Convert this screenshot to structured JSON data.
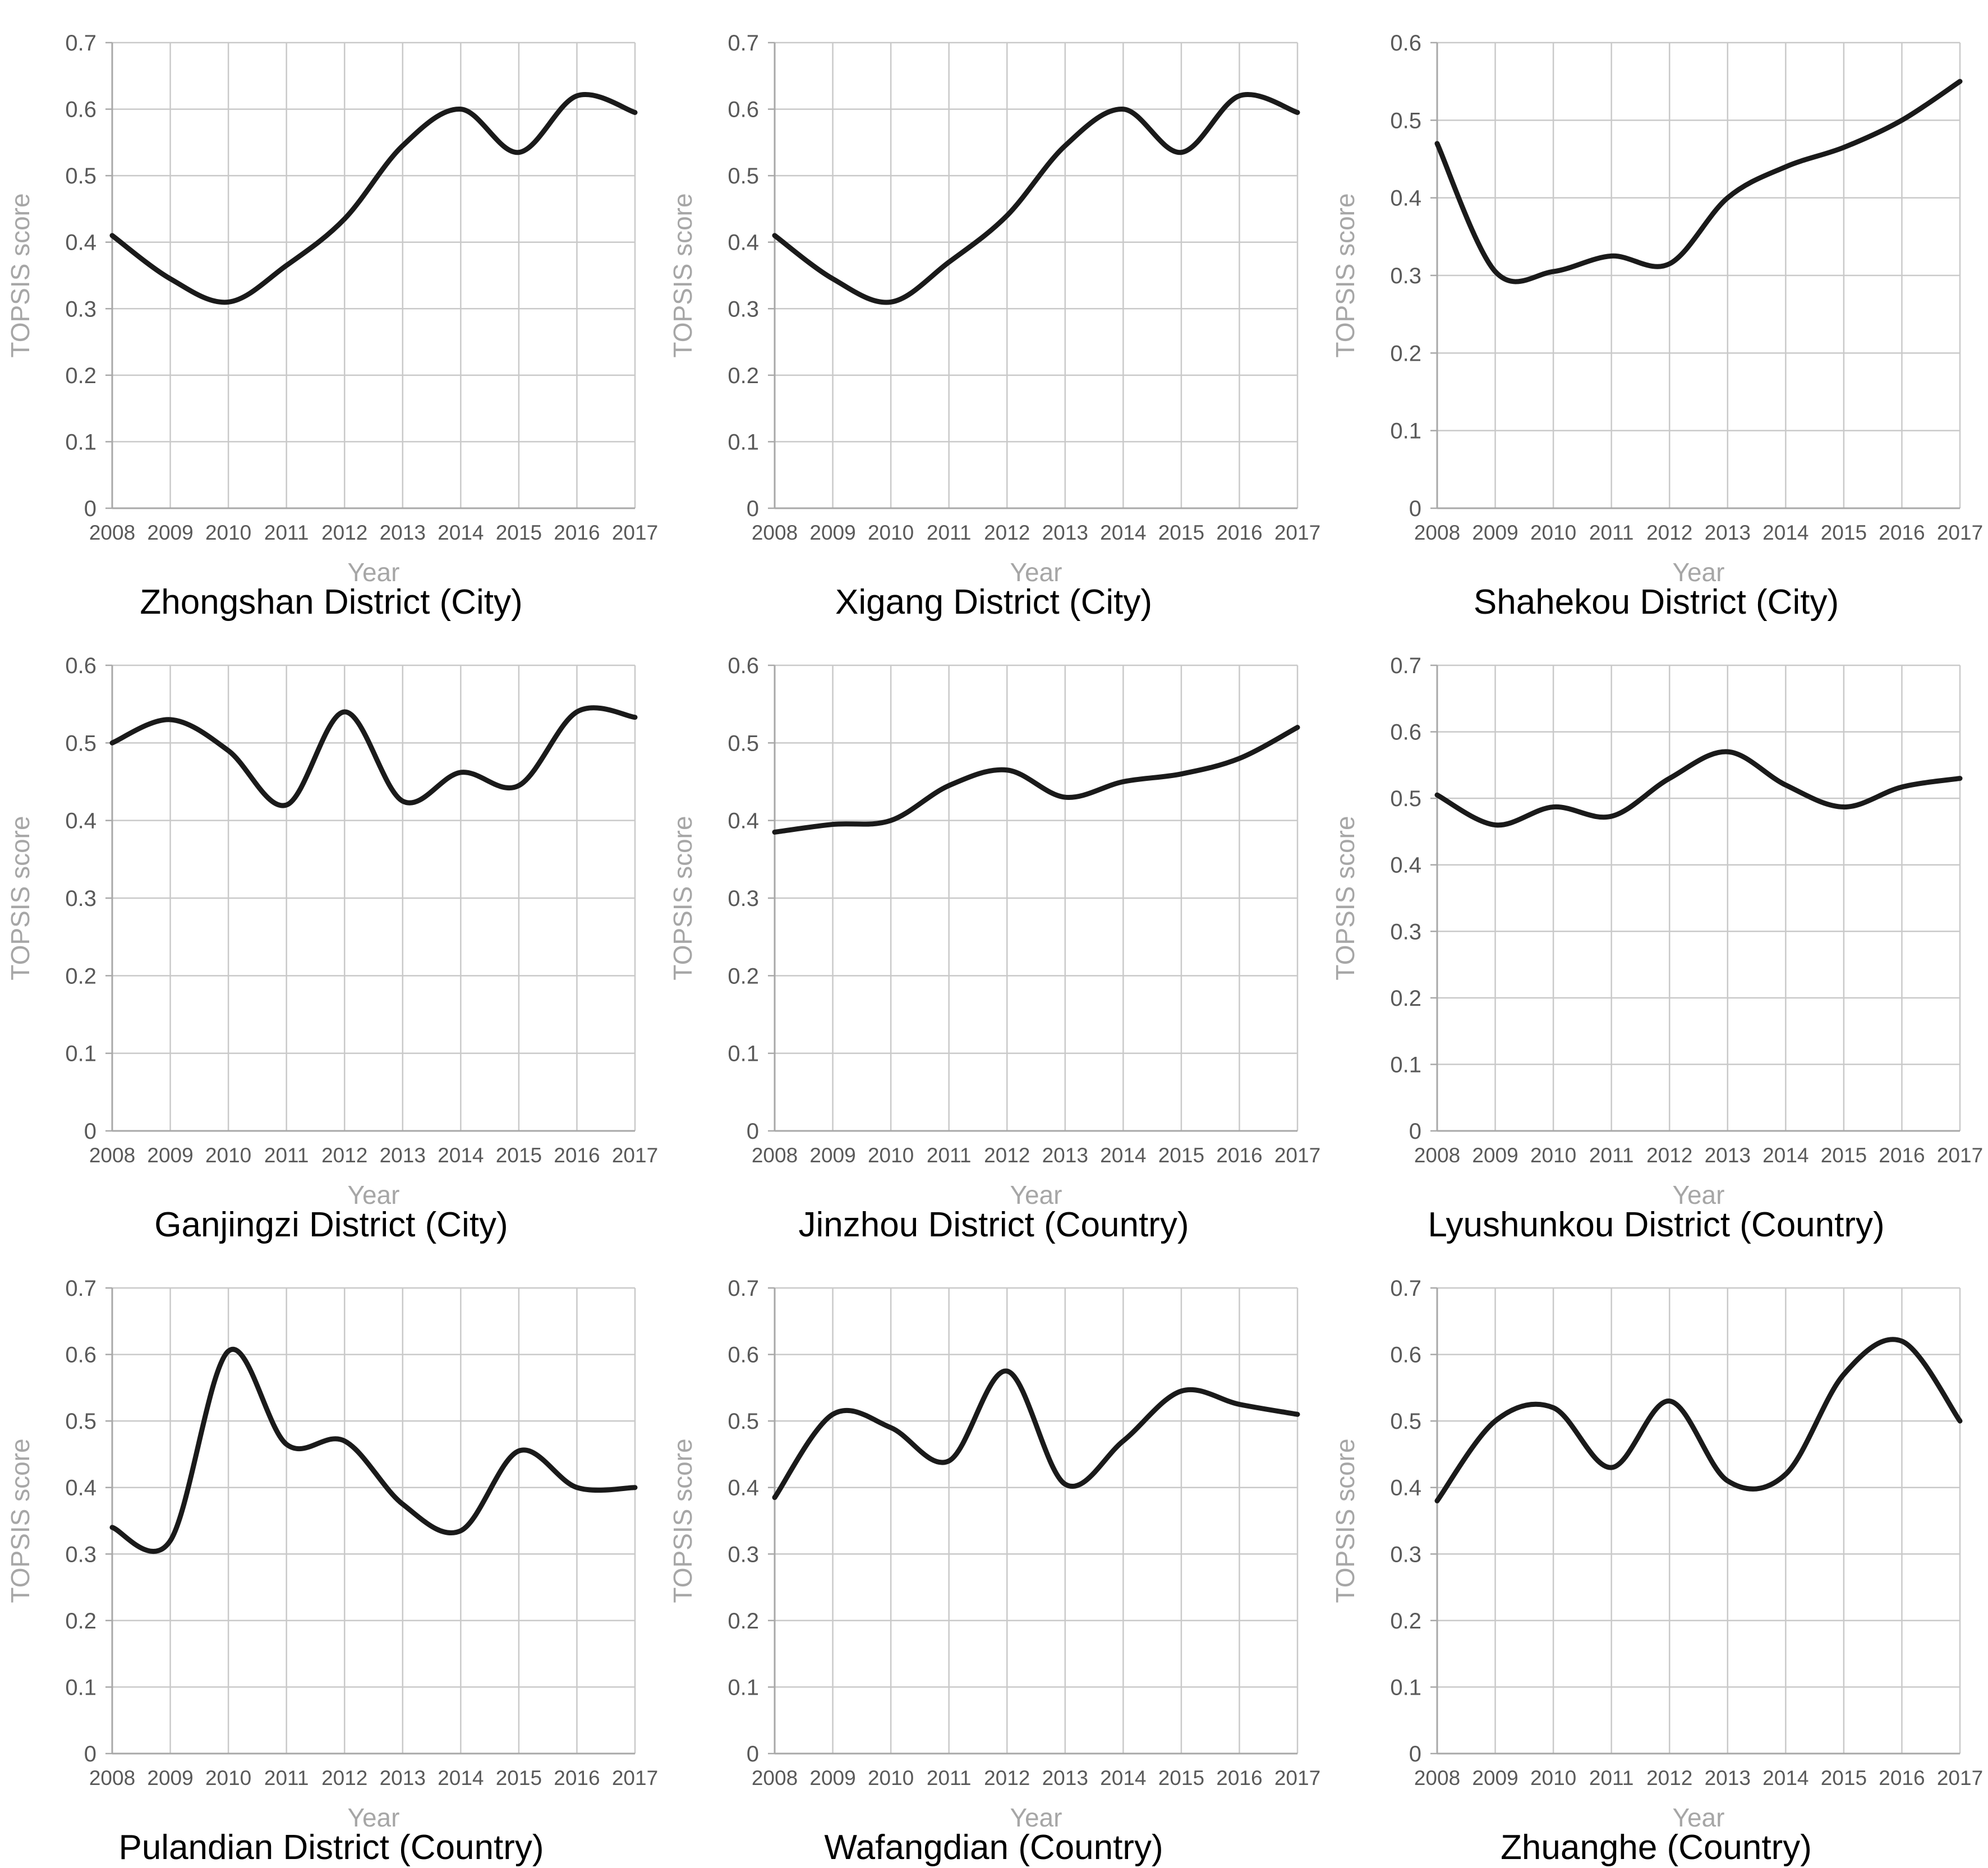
{
  "figure": {
    "xlabel": "Year",
    "ylabel": "TOPSIS score"
  },
  "colors": {
    "line": "#1a1a1a",
    "grid": "#c9c9c9",
    "axis": "#a8a8a8",
    "tick_text": "#595959",
    "axis_label_text": "#a6a6a6",
    "title_text": "#000000",
    "background": "#ffffff"
  },
  "chart_data": [
    {
      "type": "line",
      "title": "Zhongshan District (City)",
      "xlabel": "Year",
      "ylabel": "TOPSIS score",
      "x": [
        2008,
        2009,
        2010,
        2011,
        2012,
        2013,
        2014,
        2015,
        2016,
        2017
      ],
      "values": [
        0.41,
        0.345,
        0.31,
        0.365,
        0.435,
        0.545,
        0.6,
        0.535,
        0.62,
        0.595
      ],
      "ylim": [
        0,
        0.7
      ],
      "ytick_step": 0.1,
      "grid": true,
      "legend": "none"
    },
    {
      "type": "line",
      "title": "Xigang District (City)",
      "xlabel": "Year",
      "ylabel": "TOPSIS score",
      "x": [
        2008,
        2009,
        2010,
        2011,
        2012,
        2013,
        2014,
        2015,
        2016,
        2017
      ],
      "values": [
        0.41,
        0.345,
        0.31,
        0.37,
        0.44,
        0.545,
        0.6,
        0.535,
        0.62,
        0.595
      ],
      "ylim": [
        0,
        0.7
      ],
      "ytick_step": 0.1,
      "grid": true,
      "legend": "none"
    },
    {
      "type": "line",
      "title": "Shahekou District (City)",
      "xlabel": "Year",
      "ylabel": "TOPSIS score",
      "x": [
        2008,
        2009,
        2010,
        2011,
        2012,
        2013,
        2014,
        2015,
        2016,
        2017
      ],
      "values": [
        0.47,
        0.305,
        0.305,
        0.325,
        0.315,
        0.4,
        0.44,
        0.465,
        0.5,
        0.55
      ],
      "ylim": [
        0,
        0.6
      ],
      "ytick_step": 0.1,
      "grid": true,
      "legend": "none"
    },
    {
      "type": "line",
      "title": "Ganjingzi District (City)",
      "xlabel": "Year",
      "ylabel": "TOPSIS score",
      "x": [
        2008,
        2009,
        2010,
        2011,
        2012,
        2013,
        2014,
        2015,
        2016,
        2017
      ],
      "values": [
        0.5,
        0.53,
        0.49,
        0.42,
        0.54,
        0.425,
        0.462,
        0.445,
        0.54,
        0.533
      ],
      "ylim": [
        0,
        0.6
      ],
      "ytick_step": 0.1,
      "grid": true,
      "legend": "none"
    },
    {
      "type": "line",
      "title": "Jinzhou District (Country)",
      "xlabel": "Year",
      "ylabel": "TOPSIS score",
      "x": [
        2008,
        2009,
        2010,
        2011,
        2012,
        2013,
        2014,
        2015,
        2016,
        2017
      ],
      "values": [
        0.385,
        0.395,
        0.4,
        0.445,
        0.465,
        0.43,
        0.45,
        0.46,
        0.48,
        0.52
      ],
      "ylim": [
        0,
        0.6
      ],
      "ytick_step": 0.1,
      "grid": true,
      "legend": "none"
    },
    {
      "type": "line",
      "title": "Lyushunkou District (Country)",
      "xlabel": "Year",
      "ylabel": "TOPSIS score",
      "x": [
        2008,
        2009,
        2010,
        2011,
        2012,
        2013,
        2014,
        2015,
        2016,
        2017
      ],
      "values": [
        0.505,
        0.46,
        0.487,
        0.473,
        0.53,
        0.57,
        0.52,
        0.487,
        0.517,
        0.53
      ],
      "ylim": [
        0,
        0.7
      ],
      "ytick_step": 0.1,
      "grid": true,
      "legend": "none"
    },
    {
      "type": "line",
      "title": "Pulandian District (Country)",
      "xlabel": "Year",
      "ylabel": "TOPSIS score",
      "x": [
        2008,
        2009,
        2010,
        2011,
        2012,
        2013,
        2014,
        2015,
        2016,
        2017
      ],
      "values": [
        0.34,
        0.32,
        0.605,
        0.465,
        0.47,
        0.375,
        0.335,
        0.455,
        0.4,
        0.4
      ],
      "ylim": [
        0,
        0.7
      ],
      "ytick_step": 0.1,
      "grid": true,
      "legend": "none"
    },
    {
      "type": "line",
      "title": "Wafangdian (Country)",
      "xlabel": "Year",
      "ylabel": "TOPSIS score",
      "x": [
        2008,
        2009,
        2010,
        2011,
        2012,
        2013,
        2014,
        2015,
        2016,
        2017
      ],
      "values": [
        0.385,
        0.51,
        0.49,
        0.44,
        0.575,
        0.405,
        0.47,
        0.545,
        0.525,
        0.51
      ],
      "ylim": [
        0,
        0.7
      ],
      "ytick_step": 0.1,
      "grid": true,
      "legend": "none"
    },
    {
      "type": "line",
      "title": "Zhuanghe (Country)",
      "xlabel": "Year",
      "ylabel": "TOPSIS score",
      "x": [
        2008,
        2009,
        2010,
        2011,
        2012,
        2013,
        2014,
        2015,
        2016,
        2017
      ],
      "values": [
        0.38,
        0.5,
        0.52,
        0.43,
        0.53,
        0.41,
        0.42,
        0.57,
        0.62,
        0.5
      ],
      "ylim": [
        0,
        0.7
      ],
      "ytick_step": 0.1,
      "grid": true,
      "legend": "none"
    }
  ]
}
